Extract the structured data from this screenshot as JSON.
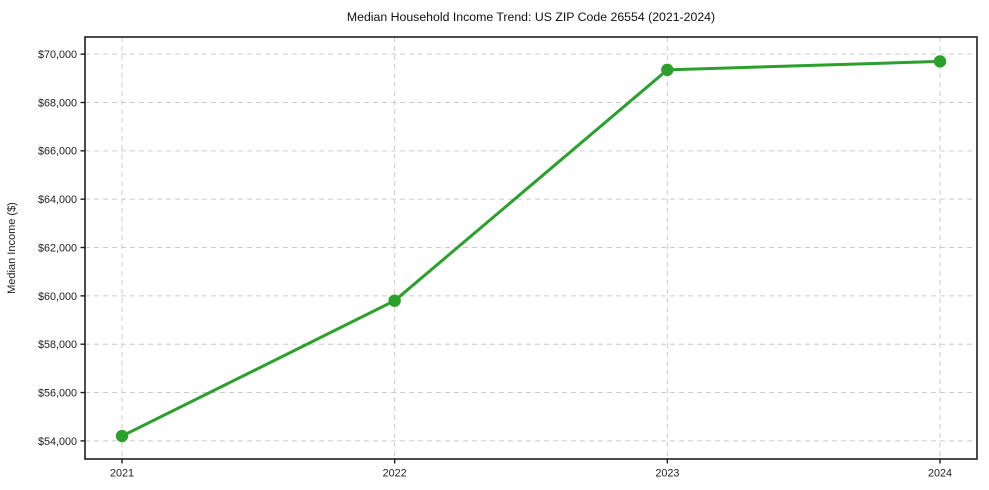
{
  "figure": {
    "background": "#ffffff"
  },
  "chart_data": {
    "type": "line",
    "title": "Median Household Income Trend: US ZIP Code 26554 (2021-2024)",
    "xlabel": "",
    "ylabel": "Median Income ($)",
    "x": [
      2021,
      2022,
      2023,
      2024
    ],
    "x_tick_labels": [
      "2021",
      "2022",
      "2023",
      "2024"
    ],
    "values": [
      54200,
      59800,
      69350,
      69700
    ],
    "y_ticks": [
      54000,
      56000,
      58000,
      60000,
      62000,
      64000,
      66000,
      68000,
      70000
    ],
    "y_tick_labels": [
      "$54,000",
      "$56,000",
      "$58,000",
      "$60,000",
      "$62,000",
      "$64,000",
      "$66,000",
      "$68,000",
      "$70,000"
    ],
    "ylim": [
      53250,
      70710
    ],
    "grid": true,
    "legend": "none",
    "line_color": "#2ca02c",
    "marker": "circle"
  }
}
